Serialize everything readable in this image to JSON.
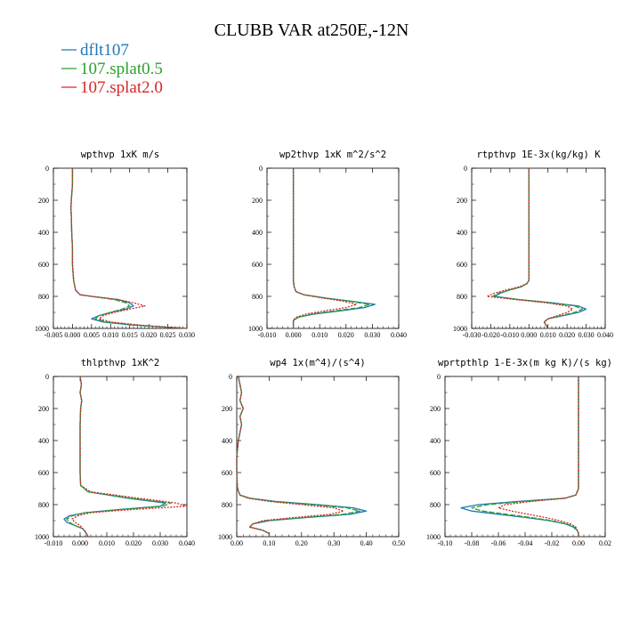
{
  "figure": {
    "title": "CLUBB VAR at250E,-12N",
    "legend": [
      {
        "name": "dflt107",
        "color": "#1f77b4"
      },
      {
        "name": "107.splat0.5",
        "color": "#2ca02c"
      },
      {
        "name": "107.splat2.0",
        "color": "#d62728"
      }
    ]
  },
  "chart_data": [
    {
      "type": "line",
      "title": "wpthvp   1xK  m/s",
      "xlim": [
        -0.005,
        0.03
      ],
      "xticks": [
        "-0.005",
        "0.000",
        "0.005",
        "0.010",
        "0.015",
        "0.020",
        "0.025",
        "0.030"
      ],
      "ylim": [
        1000,
        0
      ],
      "yticks": [
        "0",
        "200",
        "400",
        "600",
        "800",
        "1000"
      ],
      "y": [
        0,
        100,
        200,
        250,
        300,
        400,
        500,
        600,
        700,
        760,
        790,
        800,
        820,
        840,
        860,
        880,
        900,
        920,
        940,
        960,
        980,
        1000
      ],
      "series": [
        {
          "name": "dflt107",
          "x": [
            0.0,
            0.0,
            -0.0003,
            -0.0004,
            -0.0003,
            -0.0002,
            0.0,
            0.0,
            0.0003,
            0.0008,
            0.002,
            0.005,
            0.012,
            0.015,
            0.016,
            0.014,
            0.01,
            0.007,
            0.005,
            0.008,
            0.016,
            0.03
          ]
        },
        {
          "name": "107.splat0.5",
          "x": [
            0.0,
            0.0,
            -0.0003,
            -0.0004,
            -0.0003,
            -0.0002,
            0.0,
            0.0,
            0.0003,
            0.0008,
            0.002,
            0.005,
            0.011,
            0.014,
            0.015,
            0.013,
            0.01,
            0.007,
            0.006,
            0.009,
            0.017,
            0.03
          ]
        },
        {
          "name": "107.splat2.0",
          "x": [
            0.0,
            0.0,
            -0.0003,
            -0.0004,
            -0.0003,
            -0.0002,
            0.0,
            0.0,
            0.0003,
            0.0008,
            0.002,
            0.005,
            0.012,
            0.016,
            0.019,
            0.015,
            0.011,
            0.008,
            0.007,
            0.01,
            0.018,
            0.03
          ]
        }
      ]
    },
    {
      "type": "line",
      "title": "wp2thvp   1xK  m^2/s^2",
      "xlim": [
        -0.01,
        0.04
      ],
      "xticks": [
        "-0.010",
        "0.000",
        "0.010",
        "0.020",
        "0.030",
        "0.040"
      ],
      "ylim": [
        1000,
        0
      ],
      "yticks": [
        "0",
        "200",
        "400",
        "600",
        "800",
        "1000"
      ],
      "y": [
        0,
        100,
        200,
        300,
        400,
        500,
        600,
        700,
        740,
        770,
        790,
        810,
        830,
        850,
        870,
        890,
        910,
        930,
        950,
        970,
        990,
        1000
      ],
      "series": [
        {
          "name": "dflt107",
          "x": [
            0.0,
            0.0,
            0.0,
            0.0,
            0.0,
            0.0,
            0.0,
            0.0,
            0.0003,
            0.001,
            0.004,
            0.012,
            0.022,
            0.031,
            0.027,
            0.018,
            0.008,
            0.002,
            0.0,
            0.0,
            0.0,
            0.0
          ]
        },
        {
          "name": "107.splat0.5",
          "x": [
            0.0,
            0.0,
            0.0,
            0.0,
            0.0,
            0.0,
            0.0,
            0.0,
            0.0003,
            0.001,
            0.004,
            0.012,
            0.021,
            0.029,
            0.025,
            0.016,
            0.007,
            0.002,
            0.0,
            0.0,
            0.0,
            0.0
          ]
        },
        {
          "name": "107.splat2.0",
          "x": [
            0.0,
            0.0,
            0.0,
            0.0,
            0.0,
            0.0,
            0.0,
            0.0,
            0.0003,
            0.001,
            0.004,
            0.011,
            0.019,
            0.024,
            0.02,
            0.012,
            0.005,
            0.001,
            0.0,
            0.0,
            0.0,
            0.0
          ]
        }
      ]
    },
    {
      "type": "line",
      "title": "rtpthvp   1E-3x(kg/kg)  K",
      "xlim": [
        -0.03,
        0.04
      ],
      "xticks": [
        "-0.030",
        "-0.020",
        "-0.010",
        "0.000",
        "0.010",
        "0.020",
        "0.030",
        "0.040"
      ],
      "ylim": [
        1000,
        0
      ],
      "yticks": [
        "0",
        "200",
        "400",
        "600",
        "800",
        "1000"
      ],
      "y": [
        0,
        100,
        200,
        300,
        400,
        500,
        600,
        700,
        720,
        740,
        760,
        780,
        800,
        820,
        840,
        860,
        880,
        900,
        920,
        940,
        960,
        980,
        1000
      ],
      "series": [
        {
          "name": "dflt107",
          "x": [
            0.0,
            0.0,
            0.0,
            0.0,
            0.0,
            0.0,
            0.0,
            0.0,
            -0.001,
            -0.004,
            -0.01,
            -0.015,
            -0.018,
            -0.005,
            0.012,
            0.026,
            0.03,
            0.026,
            0.018,
            0.01,
            0.008,
            0.009,
            0.01
          ]
        },
        {
          "name": "107.splat0.5",
          "x": [
            0.0,
            0.0,
            0.0,
            0.0,
            0.0,
            0.0,
            0.0,
            0.0,
            -0.001,
            -0.004,
            -0.01,
            -0.016,
            -0.019,
            -0.005,
            0.011,
            0.024,
            0.028,
            0.024,
            0.017,
            0.01,
            0.008,
            0.009,
            0.01
          ]
        },
        {
          "name": "107.splat2.0",
          "x": [
            0.0,
            0.0,
            0.0,
            0.0,
            0.0,
            0.0,
            0.0,
            0.0,
            -0.001,
            -0.005,
            -0.012,
            -0.018,
            -0.022,
            -0.007,
            0.009,
            0.02,
            0.023,
            0.02,
            0.015,
            0.01,
            0.008,
            0.009,
            0.01
          ]
        }
      ]
    },
    {
      "type": "line",
      "title": "thlpthvp   1xK^2",
      "xlim": [
        -0.01,
        0.04
      ],
      "xticks": [
        "-0.010",
        "0.000",
        "0.010",
        "0.020",
        "0.030",
        "0.040"
      ],
      "ylim": [
        1000,
        0
      ],
      "yticks": [
        "0",
        "200",
        "400",
        "600",
        "800",
        "1000"
      ],
      "y": [
        0,
        50,
        100,
        150,
        200,
        300,
        400,
        500,
        600,
        680,
        720,
        760,
        790,
        810,
        830,
        850,
        870,
        890,
        910,
        930,
        950,
        970,
        1000
      ],
      "series": [
        {
          "name": "dflt107",
          "x": [
            0.0,
            0.0005,
            0.0,
            0.0006,
            0.0002,
            0.0,
            0.0,
            0.0,
            0.0,
            0.0002,
            0.003,
            0.018,
            0.032,
            0.03,
            0.015,
            0.002,
            -0.004,
            -0.006,
            -0.005,
            -0.002,
            0.001,
            0.002,
            0.003
          ]
        },
        {
          "name": "107.splat0.5",
          "x": [
            0.0,
            0.0005,
            0.0,
            0.0006,
            0.0002,
            0.0,
            0.0,
            0.0,
            0.0,
            0.0002,
            0.003,
            0.019,
            0.034,
            0.031,
            0.016,
            0.002,
            -0.003,
            -0.005,
            -0.004,
            -0.002,
            0.001,
            0.002,
            0.003
          ]
        },
        {
          "name": "107.splat2.0",
          "x": [
            0.0,
            0.0005,
            0.0,
            0.0006,
            0.0002,
            0.0,
            0.0,
            0.0,
            0.0,
            0.0002,
            0.004,
            0.022,
            0.036,
            0.04,
            0.02,
            0.004,
            -0.001,
            -0.003,
            -0.002,
            0.0,
            0.001,
            0.002,
            0.003
          ]
        }
      ]
    },
    {
      "type": "line",
      "title": "wp4   1x(m^4)/(s^4)",
      "xlim": [
        0.0,
        0.5
      ],
      "xticks": [
        "0.00",
        "0.10",
        "0.20",
        "0.30",
        "0.40",
        "0.50"
      ],
      "ylim": [
        1000,
        0
      ],
      "yticks": [
        "0",
        "200",
        "400",
        "600",
        "800",
        "1000"
      ],
      "y": [
        0,
        100,
        150,
        200,
        250,
        300,
        400,
        500,
        600,
        700,
        740,
        760,
        780,
        800,
        820,
        840,
        860,
        880,
        900,
        920,
        940,
        960,
        980,
        1000
      ],
      "series": [
        {
          "name": "dflt107",
          "x": [
            0.005,
            0.015,
            0.01,
            0.02,
            0.01,
            0.015,
            0.005,
            0.0,
            0.0,
            0.002,
            0.01,
            0.04,
            0.12,
            0.25,
            0.36,
            0.4,
            0.35,
            0.22,
            0.1,
            0.05,
            0.04,
            0.08,
            0.1,
            0.1
          ]
        },
        {
          "name": "107.splat0.5",
          "x": [
            0.005,
            0.015,
            0.01,
            0.02,
            0.01,
            0.015,
            0.005,
            0.0,
            0.0,
            0.002,
            0.01,
            0.04,
            0.11,
            0.23,
            0.34,
            0.38,
            0.33,
            0.21,
            0.09,
            0.05,
            0.04,
            0.08,
            0.1,
            0.1
          ]
        },
        {
          "name": "107.splat2.0",
          "x": [
            0.005,
            0.015,
            0.01,
            0.02,
            0.01,
            0.015,
            0.005,
            0.0,
            0.0,
            0.002,
            0.01,
            0.035,
            0.1,
            0.2,
            0.3,
            0.33,
            0.29,
            0.18,
            0.08,
            0.05,
            0.04,
            0.08,
            0.1,
            0.1
          ]
        }
      ]
    },
    {
      "type": "line",
      "title": "wprtpthlp   1-E-3x(m  kg  K)/(s  kg)",
      "xlim": [
        -0.1,
        0.02
      ],
      "xticks": [
        "-0.10",
        "-0.08",
        "-0.06",
        "-0.04",
        "-0.02",
        "0.00",
        "0.02"
      ],
      "ylim": [
        1000,
        0
      ],
      "yticks": [
        "0",
        "200",
        "400",
        "600",
        "800",
        "1000"
      ],
      "y": [
        0,
        100,
        200,
        300,
        400,
        500,
        600,
        700,
        740,
        760,
        780,
        800,
        820,
        840,
        860,
        880,
        900,
        920,
        940,
        960,
        980,
        1000
      ],
      "series": [
        {
          "name": "dflt107",
          "x": [
            0.0,
            0.0,
            0.0,
            0.0,
            0.0,
            0.0,
            0.0,
            0.0,
            -0.002,
            -0.01,
            -0.045,
            -0.075,
            -0.088,
            -0.08,
            -0.06,
            -0.04,
            -0.022,
            -0.01,
            -0.004,
            -0.001,
            0.0,
            0.0
          ]
        },
        {
          "name": "107.splat0.5",
          "x": [
            0.0,
            0.0,
            0.0,
            0.0,
            0.0,
            0.0,
            0.0,
            0.0,
            -0.002,
            -0.01,
            -0.04,
            -0.068,
            -0.08,
            -0.072,
            -0.054,
            -0.036,
            -0.02,
            -0.009,
            -0.003,
            -0.001,
            0.0,
            0.0
          ]
        },
        {
          "name": "107.splat2.0",
          "x": [
            0.0,
            0.0,
            0.0,
            0.0,
            0.0,
            0.0,
            0.0,
            0.0,
            -0.002,
            -0.01,
            -0.035,
            -0.055,
            -0.06,
            -0.05,
            -0.038,
            -0.025,
            -0.014,
            -0.006,
            -0.002,
            -0.001,
            0.0,
            0.0
          ]
        }
      ]
    }
  ]
}
